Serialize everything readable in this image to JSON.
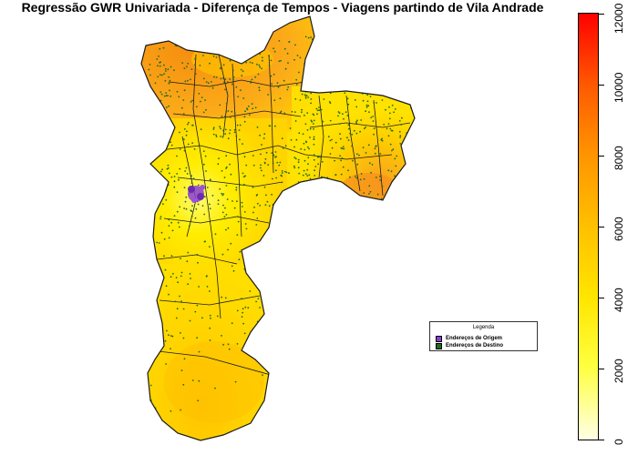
{
  "title": "Regressão GWR Univariada - Diferença de Tempos - Viagens partindo de Vila Andrade",
  "legend": {
    "title": "Legenda",
    "items": [
      {
        "label": "Endereços de Origem",
        "color": "#8a3fd0"
      },
      {
        "label": "Endereços de Destino",
        "color": "#1f6b1f"
      }
    ]
  },
  "colorbar": {
    "ticks": [
      "0",
      "2000",
      "4000",
      "6000",
      "8000",
      "10000",
      "12000"
    ],
    "range": [
      0,
      12000
    ],
    "colors": [
      "#ffffe6",
      "#ffff00",
      "#ffd000",
      "#ffa000",
      "#ff6a00",
      "#ff0000"
    ]
  },
  "colors": {
    "border": "#1a1a1a",
    "destination_points": "#1f6b1f",
    "origin_points": "#8a3fd0"
  }
}
